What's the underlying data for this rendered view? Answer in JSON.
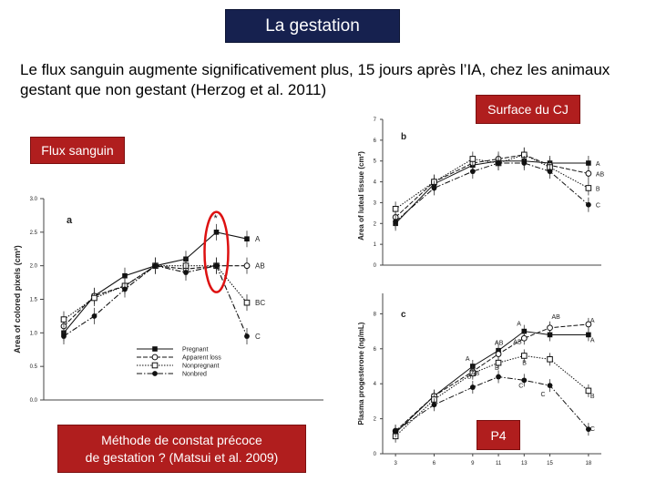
{
  "slide": {
    "title": "La gestation",
    "intro": "Le flux sanguin augmente significativement plus, 15 jours après l’IA, chez les animaux gestant que non gestant (Herzog et al. 2011)",
    "label_surface": "Surface du CJ",
    "label_flux": "Flux sanguin",
    "label_method_line1": "Méthode de constat précoce",
    "label_method_line2": "de gestation ? (Matsui et al. 2009)",
    "label_p4": "P4",
    "colors": {
      "title_bg": "#16214f",
      "label_bg": "#b01e1e",
      "highlight": "#dd1111"
    }
  },
  "chart_data": [
    {
      "type": "line",
      "panel_letter": "a",
      "xlabel": "",
      "ylabel": "Area of colored pixels (cm²)",
      "x": [
        1,
        2,
        3,
        4,
        5,
        6,
        7,
        8
      ],
      "ylim": [
        0.0,
        3.0
      ],
      "yticks": [
        "0.0",
        "0.5",
        "1.0",
        "1.5",
        "2.0",
        "2.5",
        "3.0"
      ],
      "series": [
        {
          "name": "Pregnant",
          "end_label": "A",
          "values": [
            1.0,
            1.55,
            1.85,
            2.0,
            2.1,
            2.5,
            2.4,
            null
          ]
        },
        {
          "name": "Apparent loss",
          "end_label": "AB",
          "values": [
            1.1,
            1.55,
            1.7,
            2.0,
            1.95,
            2.0,
            2.0,
            null
          ]
        },
        {
          "name": "Nonpregnant",
          "end_label": "BC",
          "values": [
            1.2,
            1.52,
            1.7,
            2.0,
            2.0,
            2.0,
            1.45,
            null
          ]
        },
        {
          "name": "Nonbred",
          "end_label": "C",
          "values": [
            0.95,
            1.25,
            1.65,
            2.0,
            1.9,
            2.0,
            0.95,
            null
          ]
        }
      ],
      "annotation": "*"
    },
    {
      "type": "line",
      "panel_letter": "b",
      "xlabel": "",
      "ylabel": "Area of luteal tissue (cm²)",
      "ylim": [
        0,
        7
      ],
      "yticks": [
        "0",
        "1",
        "2",
        "3",
        "4",
        "5",
        "6",
        "7"
      ],
      "x": [
        3,
        6,
        9,
        11,
        13,
        15,
        18
      ],
      "series": [
        {
          "end_label": "A",
          "values": [
            2.0,
            3.9,
            4.8,
            5.0,
            5.0,
            4.9,
            4.9
          ]
        },
        {
          "end_label": "AB",
          "values": [
            2.3,
            4.0,
            4.9,
            5.1,
            5.3,
            4.8,
            4.4
          ]
        },
        {
          "end_label": "B",
          "values": [
            2.7,
            4.0,
            5.1,
            4.9,
            5.3,
            4.7,
            3.7
          ]
        },
        {
          "end_label": "C",
          "values": [
            2.1,
            3.7,
            4.5,
            4.9,
            4.9,
            4.5,
            2.9
          ]
        }
      ]
    },
    {
      "type": "line",
      "panel_letter": "c",
      "xlabel": "",
      "ylabel": "Plasma progesterone (ng/mL)",
      "ylim": [
        0,
        10
      ],
      "yticks": [
        "0",
        "2",
        "4",
        "6",
        "8"
      ],
      "x": [
        3,
        6,
        9,
        11,
        13,
        15,
        18
      ],
      "xticks": [
        "3",
        "6",
        "9",
        "11",
        "13",
        "15",
        "18"
      ],
      "series": [
        {
          "values": [
            1.2,
            3.3,
            5.0,
            5.9,
            7.0,
            6.8,
            6.8
          ]
        },
        {
          "values": [
            1.3,
            3.3,
            4.7,
            5.7,
            6.6,
            7.2,
            7.4
          ]
        },
        {
          "values": [
            1.0,
            3.1,
            4.6,
            5.2,
            5.6,
            5.4,
            3.6
          ]
        },
        {
          "values": [
            1.3,
            2.8,
            3.8,
            4.4,
            4.2,
            3.9,
            1.4
          ]
        }
      ],
      "point_labels": [
        "A",
        "AB",
        "B",
        "A",
        "AB",
        "B",
        "A",
        "AB",
        "B",
        "C",
        "AB",
        "C",
        "A",
        "A",
        "B",
        "C"
      ]
    }
  ]
}
